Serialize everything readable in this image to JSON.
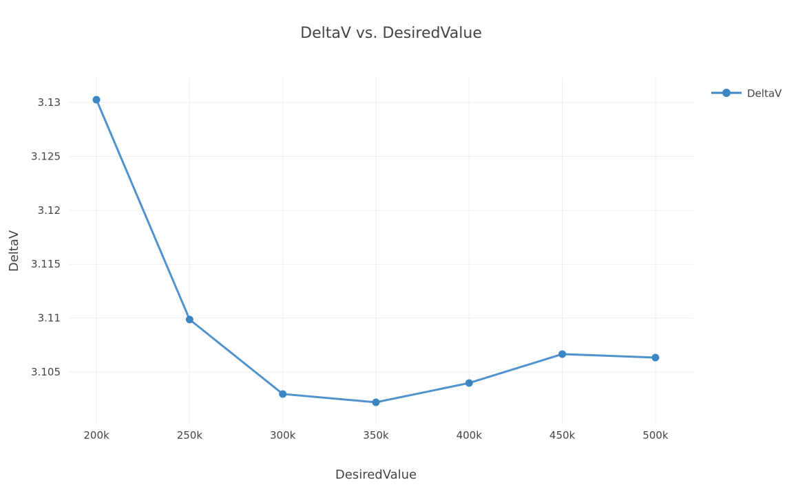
{
  "chart_data": {
    "type": "line",
    "title": "DeltaV vs. DesiredValue",
    "xlabel": "DesiredValue",
    "ylabel": "DeltaV",
    "x": [
      200000,
      250000,
      300000,
      350000,
      400000,
      450000,
      500000
    ],
    "series": [
      {
        "name": "DeltaV",
        "color": "#3d86c6",
        "values": [
          3.13026,
          3.10987,
          3.10296,
          3.10219,
          3.10398,
          3.10666,
          3.10634
        ]
      }
    ],
    "xticks": [
      200000,
      250000,
      300000,
      350000,
      400000,
      450000,
      500000
    ],
    "xtick_labels": [
      "200k",
      "250k",
      "300k",
      "350k",
      "400k",
      "450k",
      "500k"
    ],
    "yticks": [
      3.105,
      3.11,
      3.115,
      3.12,
      3.125,
      3.13
    ],
    "ytick_labels": [
      "3.105",
      "3.11",
      "3.115",
      "3.12",
      "3.125",
      "3.13"
    ],
    "xlim": [
      185200,
      520000
    ],
    "ylim": [
      3.10015,
      3.1323
    ],
    "grid": true,
    "legend": "top-right"
  }
}
